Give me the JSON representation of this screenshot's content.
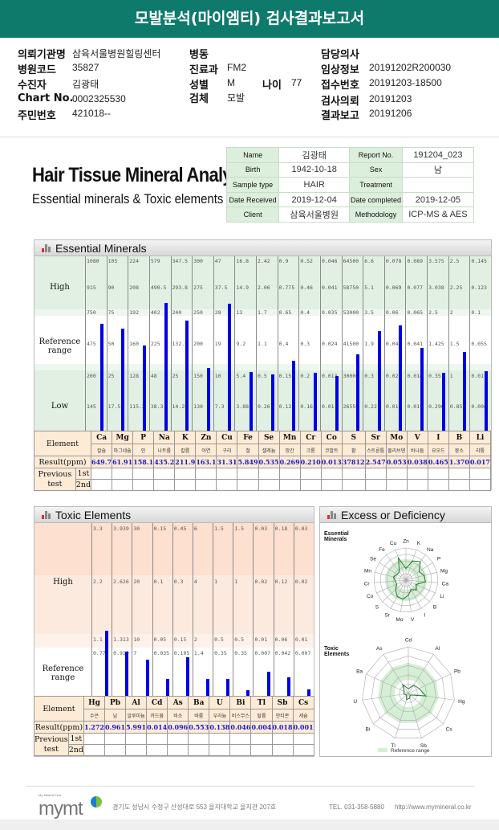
{
  "title": "모발분석(마이엠티) 검사결과보고서",
  "request_info": {
    "col1": [
      {
        "label": "의뢰기관명",
        "value": "삼육서울병원힐링센터"
      },
      {
        "label": "병원코드",
        "value": "35827"
      },
      {
        "label": "수진자",
        "value": "김광태"
      },
      {
        "label": "Chart No.",
        "value": "0002325530"
      },
      {
        "label": "주민번호",
        "value": "421018--"
      }
    ],
    "col2": [
      {
        "label": "병동",
        "value": ""
      },
      {
        "label": "진료과",
        "value": "FM2"
      },
      {
        "label": "성별",
        "value": "M"
      },
      {
        "label": "검체",
        "value": "모발"
      }
    ],
    "age": {
      "label": "나이",
      "value": "77"
    },
    "col3": [
      {
        "label": "담당의사",
        "value": ""
      },
      {
        "label": "임상정보",
        "value": "20191202R200030"
      },
      {
        "label": "접수번호",
        "value": "20191203-18500"
      },
      {
        "label": "검사의뢰",
        "value": "20191203"
      },
      {
        "label": "결과보고",
        "value": "20191206"
      }
    ]
  },
  "report_title": "Hair Tissue Mineral Analysis",
  "report_subtitle": "Essential minerals & Toxic elements",
  "patient": [
    [
      "Name",
      "김광태",
      "Report No.",
      "191204_023"
    ],
    [
      "Birth",
      "1942-10-18",
      "Sex",
      "남"
    ],
    [
      "Sample type",
      "HAIR",
      "Treatment",
      ""
    ],
    [
      "Date Received",
      "2019-12-04",
      "Date completed",
      "2019-12-05"
    ],
    [
      "Client",
      "삼육서울병원",
      "Methodology",
      "ICP-MS & AES"
    ]
  ],
  "labels": {
    "high": "High",
    "reference": "Reference range",
    "low": "Low",
    "element": "Element",
    "result": "Result(ppm)",
    "previous": "Previous test",
    "first": "1st",
    "second": "2nd"
  },
  "colors": {
    "header": "#0e7a6c",
    "bar": "#0000e6",
    "essential_band": "#e1f0e3",
    "toxic_band": "#fde3d4",
    "result_text": "#1a1ad0"
  },
  "essential": {
    "title": "Essential Minerals",
    "elements": [
      {
        "sym": "Ca",
        "kor": "칼슘",
        "scale": [
          "1080",
          "915",
          "750",
          "475",
          "200",
          "145"
        ],
        "result": "649.7"
      },
      {
        "sym": "Mg",
        "kor": "마그네슘",
        "scale": [
          "105",
          "90",
          "75",
          "50",
          "25",
          "17.5"
        ],
        "result": "61.91"
      },
      {
        "sym": "P",
        "kor": "인",
        "scale": [
          "224",
          "208",
          "192",
          "160",
          "128",
          "115.2"
        ],
        "result": "158.1"
      },
      {
        "sym": "Na",
        "kor": "나트륨",
        "scale": [
          "579",
          "490.5",
          "402",
          "225",
          "48",
          "38.3"
        ],
        "result": "435.2"
      },
      {
        "sym": "K",
        "kor": "칼륨",
        "scale": [
          "347.5",
          "293.8",
          "240",
          "132.5",
          "25",
          "14.25"
        ],
        "result": "211.9"
      },
      {
        "sym": "Zn",
        "kor": "아연",
        "scale": [
          "300",
          "275",
          "250",
          "200",
          "150",
          "130"
        ],
        "result": "163.1"
      },
      {
        "sym": "Cu",
        "kor": "구리",
        "scale": [
          "47",
          "37.5",
          "28",
          "19",
          "10",
          "7.3"
        ],
        "result": "31.31"
      },
      {
        "sym": "Fe",
        "kor": "철",
        "scale": [
          "16.8",
          "14.9",
          "13",
          "9.2",
          "5.4",
          "3.88"
        ],
        "result": "5.849"
      },
      {
        "sym": "Se",
        "kor": "셀레늄",
        "scale": [
          "2.42",
          "2.06",
          "1.7",
          "1.1",
          "0.5",
          "0.26"
        ],
        "result": "0.535"
      },
      {
        "sym": "Mn",
        "kor": "망간",
        "scale": [
          "0.9",
          "0.775",
          "0.65",
          "0.4",
          "0.15",
          "0.125"
        ],
        "result": "0.269"
      },
      {
        "sym": "Cr",
        "kor": "크롬",
        "scale": [
          "0.52",
          "0.46",
          "0.4",
          "0.3",
          "0.2",
          "0.16"
        ],
        "result": "0.210"
      },
      {
        "sym": "Co",
        "kor": "코발트",
        "scale": [
          "0.046",
          "0.041",
          "0.035",
          "0.024",
          "0.013",
          "0.01"
        ],
        "result": "0.013"
      },
      {
        "sym": "S",
        "kor": "황",
        "scale": [
          "64500",
          "58750",
          "53000",
          "41500",
          "30000",
          "26550"
        ],
        "result": "37812"
      },
      {
        "sym": "Sr",
        "kor": "스트론튬",
        "scale": [
          "6.6",
          "5.1",
          "3.5",
          "1.9",
          "0.3",
          "0.22"
        ],
        "result": "2.547"
      },
      {
        "sym": "Mo",
        "kor": "몰리브덴",
        "scale": [
          "0.078",
          "0.069",
          "0.06",
          "0.043",
          "0.025",
          "0.018"
        ],
        "result": "0.053"
      },
      {
        "sym": "V",
        "kor": "바나듐",
        "scale": [
          "0.089",
          "0.077",
          "0.065",
          "0.041",
          "0.018",
          "0.011"
        ],
        "result": "0.038"
      },
      {
        "sym": "I",
        "kor": "요오드",
        "scale": [
          "3.575",
          "3.038",
          "2.5",
          "1.425",
          "0.35",
          "0.296"
        ],
        "result": "0.465"
      },
      {
        "sym": "B",
        "kor": "붕소",
        "scale": [
          "2.5",
          "2.25",
          "2",
          "1.5",
          "1",
          "0.85"
        ],
        "result": "1.370"
      },
      {
        "sym": "Li",
        "kor": "리튬",
        "scale": [
          "0.145",
          "0.123",
          "0.1",
          "0.055",
          "0.01",
          "0.008"
        ],
        "result": "0.017"
      }
    ]
  },
  "toxic": {
    "title": "Toxic Elements",
    "elements": [
      {
        "sym": "Hg",
        "kor": "수은",
        "scale": [
          "3.3",
          "2.2",
          "1.1",
          "0.77"
        ],
        "result": "1.272"
      },
      {
        "sym": "Pb",
        "kor": "납",
        "scale": [
          "3.939",
          "2.626",
          "1.313",
          "0.919"
        ],
        "result": "0.961"
      },
      {
        "sym": "Al",
        "kor": "알루미늄",
        "scale": [
          "30",
          "20",
          "10",
          "7"
        ],
        "result": "5.991"
      },
      {
        "sym": "Cd",
        "kor": "카드뮴",
        "scale": [
          "0.15",
          "0.1",
          "0.05",
          "0.035"
        ],
        "result": "0.014"
      },
      {
        "sym": "As",
        "kor": "비소",
        "scale": [
          "0.45",
          "0.3",
          "0.15",
          "0.105"
        ],
        "result": "0.096"
      },
      {
        "sym": "Ba",
        "kor": "바륨",
        "scale": [
          "6",
          "4",
          "2",
          "1.4"
        ],
        "result": "0.553"
      },
      {
        "sym": "U",
        "kor": "우라늄",
        "scale": [
          "1.5",
          "1",
          "0.5",
          "0.35"
        ],
        "result": "0.138"
      },
      {
        "sym": "Bi",
        "kor": "비스무스",
        "scale": [
          "1.5",
          "1",
          "0.5",
          "0.35"
        ],
        "result": "0.046"
      },
      {
        "sym": "Tl",
        "kor": "탈륨",
        "scale": [
          "0.03",
          "0.02",
          "0.01",
          "0.007"
        ],
        "result": "0.004"
      },
      {
        "sym": "Sb",
        "kor": "안티몬",
        "scale": [
          "0.18",
          "0.12",
          "0.06",
          "0.042"
        ],
        "result": "0.018"
      },
      {
        "sym": "Cs",
        "kor": "세슘",
        "scale": [
          "0.03",
          "0.02",
          "0.01",
          "0.007"
        ],
        "result": "0.001"
      }
    ]
  },
  "radar": {
    "title": "Excess or Deficiency",
    "essential_label": "Essential Minerals",
    "essential_axes": [
      "Zn",
      "K",
      "Na",
      "P",
      "Mg",
      "Ca",
      "Li",
      "B",
      "I",
      "V",
      "Mo",
      "Sr",
      "S",
      "Co",
      "Cr",
      "Mn",
      "Se",
      "Fe",
      "Cu"
    ],
    "toxic_label": "Toxic Elements",
    "toxic_axes": [
      "Cd",
      "Al",
      "Pb",
      "Hg",
      "Cs",
      "Sb",
      "Tl",
      "Bi",
      "U",
      "Ba",
      "As"
    ],
    "legend": "Reference range"
  },
  "footer": {
    "logo_tagline": "My Mineral Test",
    "logo_text": "mymt",
    "address": "경기도 성남시 수정구 산성대로 553 을지대학교 을지관 207호",
    "tel": "TEL. 031-358-5880",
    "url": "http://www.mymineral.co.kr"
  }
}
